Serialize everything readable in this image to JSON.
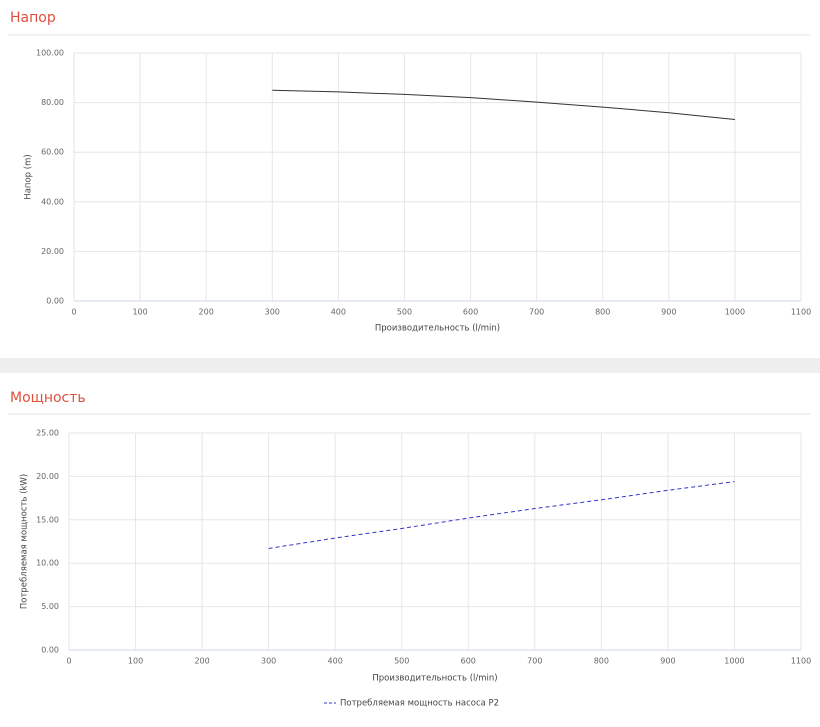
{
  "chart_data": [
    {
      "type": "line",
      "title": "Напор",
      "xlabel": "Производительность (l/min)",
      "ylabel": "Напор (m)",
      "x": [
        300,
        400,
        500,
        600,
        700,
        800,
        900,
        1000
      ],
      "values": [
        85,
        84.3,
        83.3,
        82,
        80.2,
        78.2,
        75.9,
        73.2
      ],
      "color": "#333333",
      "xlim": [
        0,
        1100
      ],
      "xticks": [
        0,
        100,
        200,
        300,
        400,
        500,
        600,
        700,
        800,
        900,
        1000,
        1100
      ],
      "ylim": [
        0,
        100
      ],
      "yticks": [
        {
          "value": 0,
          "label": "0.00"
        },
        {
          "value": 20,
          "label": "20.00"
        },
        {
          "value": 40,
          "label": "40.00"
        },
        {
          "value": 60,
          "label": "60.00"
        },
        {
          "value": 80,
          "label": "80.00"
        },
        {
          "value": 100,
          "label": "100.00"
        }
      ],
      "grid": true
    },
    {
      "type": "line",
      "title": "Мощность",
      "xlabel": "Производительность (l/min)",
      "ylabel": "Потребляемая мощность (kW)",
      "x": [
        300,
        400,
        500,
        600,
        700,
        800,
        900,
        1000
      ],
      "series": [
        {
          "name": "Потребляемая мощность насоса P2",
          "color": "#3333cc",
          "dashed": true,
          "values": [
            11.7,
            12.9,
            14.0,
            15.2,
            16.3,
            17.3,
            18.4,
            19.4
          ]
        }
      ],
      "xlim": [
        0,
        1100
      ],
      "xticks": [
        0,
        100,
        200,
        300,
        400,
        500,
        600,
        700,
        800,
        900,
        1000,
        1100
      ],
      "ylim": [
        0,
        25
      ],
      "yticks": [
        {
          "value": 0,
          "label": "0.00"
        },
        {
          "value": 5,
          "label": "5.00"
        },
        {
          "value": 10,
          "label": "10.00"
        },
        {
          "value": 15,
          "label": "15.00"
        },
        {
          "value": 20,
          "label": "20.00"
        },
        {
          "value": 25,
          "label": "25.00"
        }
      ],
      "grid": true,
      "legend": "bottom"
    }
  ]
}
